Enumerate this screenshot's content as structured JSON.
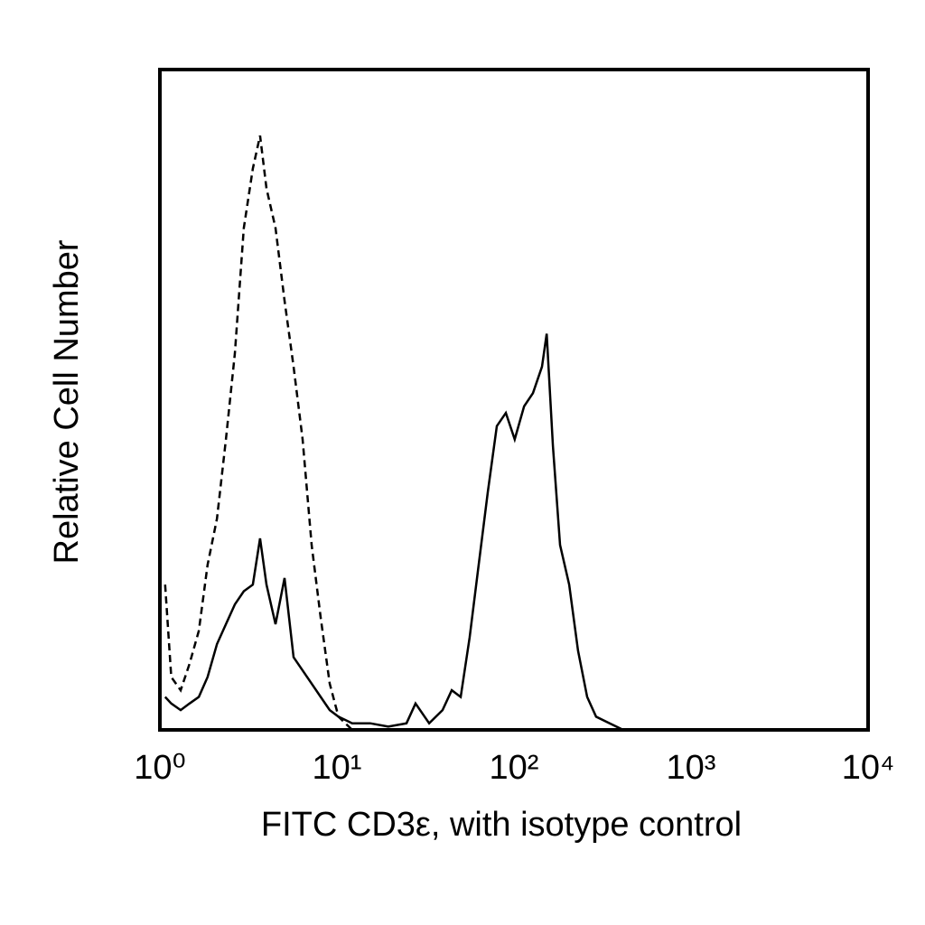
{
  "chart_data": {
    "type": "line",
    "x_label": "FITC CD3ε, with isotype control",
    "y_label": "Relative Cell Number",
    "xscale": "log",
    "xlim": [
      1,
      10000
    ],
    "xticks": [
      {
        "value": 1,
        "label": "10⁰"
      },
      {
        "value": 10,
        "label": "10¹"
      },
      {
        "value": 100,
        "label": "10²"
      },
      {
        "value": 1000,
        "label": "10³"
      },
      {
        "value": 10000,
        "label": "10⁴"
      }
    ],
    "ylim": [
      0,
      100
    ],
    "series": [
      {
        "color": "#000000",
        "dash": true,
        "x": [
          1.07,
          1.16,
          1.31,
          1.47,
          1.66,
          1.86,
          2.1,
          2.36,
          2.65,
          2.98,
          3.35,
          3.68,
          4.0,
          4.5,
          5.06,
          5.69,
          6.4,
          7.2,
          8.09,
          9.1,
          10.2,
          12.2
        ],
        "values": [
          22,
          8,
          6,
          10,
          15,
          25,
          32,
          44,
          57,
          76,
          85,
          90,
          82,
          76,
          65,
          55,
          44,
          28,
          17,
          7,
          2,
          0
        ]
      },
      {
        "color": "#000000",
        "dash": false,
        "x": [
          1.07,
          1.16,
          1.31,
          1.47,
          1.66,
          1.86,
          2.1,
          2.36,
          2.65,
          2.98,
          3.35,
          3.68,
          4.0,
          4.5,
          5.06,
          5.69,
          6.4,
          7.2,
          8.09,
          9.1,
          10.2,
          12.2,
          15.4,
          19.5,
          24.7,
          27.8,
          33.2,
          39.5,
          44.5,
          50.0,
          56.2,
          63.2,
          71.1,
          80.0,
          90.0,
          101,
          114,
          128,
          144,
          153,
          166,
          182,
          205,
          230,
          259,
          291,
          347,
          414
        ],
        "values": [
          5,
          4,
          3,
          4,
          5,
          8,
          13,
          16,
          19,
          21,
          22,
          29,
          22,
          16,
          23,
          11,
          9,
          7,
          5,
          3,
          2,
          1,
          1,
          0.5,
          1,
          4,
          1,
          3,
          6,
          5,
          14,
          25,
          36,
          46,
          48,
          44,
          49,
          51,
          55,
          60,
          43,
          28,
          22,
          12,
          5,
          2,
          1,
          0
        ]
      }
    ]
  }
}
